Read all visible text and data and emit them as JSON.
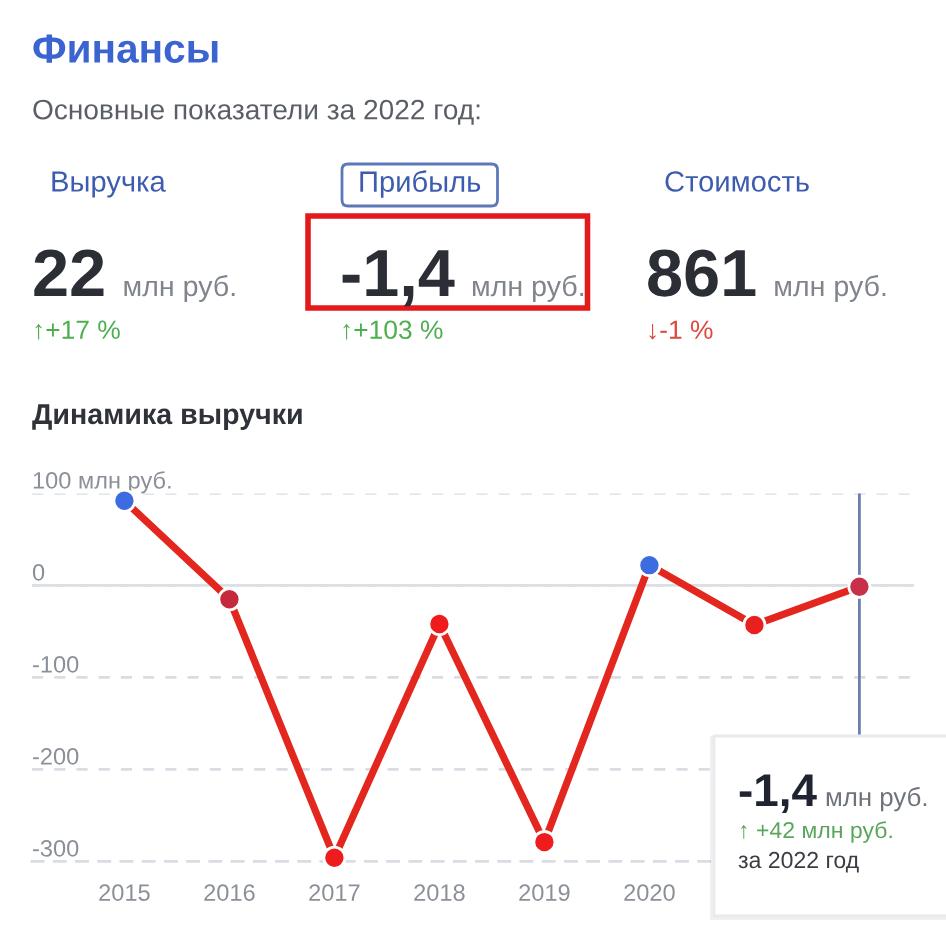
{
  "chart_data": [
    {
      "type": "other",
      "title": "Финансы",
      "subtitle": "Основные показатели за 2022 год:",
      "annotations": [
        "Выручка",
        "22",
        "млн руб.",
        "↑+17 %",
        "Прибыль",
        "-1,4",
        "млн руб.",
        "↑+103 %",
        "Стоимость",
        "861",
        "млн руб.",
        "↓-1 %"
      ]
    },
    {
      "type": "line",
      "title": "Динамика выручки",
      "x": [
        2015,
        2016,
        2017,
        2018,
        2019,
        2020,
        2021,
        2022
      ],
      "series": [
        {
          "color": "#e3261e",
          "colors": [
            "#3d6be0",
            "#c42a3c",
            "#ee1c1c",
            "#ee1c1c",
            "#ee1c1c",
            "#3d6be0",
            "#e8201f",
            "#c8304a"
          ],
          "values": [
            92,
            -15,
            -296,
            -42,
            -279,
            22,
            -43,
            -1.4
          ]
        }
      ],
      "xlim": [
        2014.12,
        2022.52
      ],
      "xticks": [
        2015,
        2016,
        2017,
        2018,
        2019,
        2020
      ],
      "ylim": [
        -300,
        100
      ],
      "yticks": [
        {
          "value": 100,
          "label": "100 млн руб."
        },
        0,
        -100,
        -200,
        -300
      ],
      "grid": "y",
      "marker": "circle",
      "line_style": "solid",
      "ref_lines": [
        {
          "axis": "y",
          "value": 0,
          "color": "#dcdfe4",
          "line_style": "solid"
        },
        {
          "axis": "x",
          "value": 2022,
          "color": "#6b7fae",
          "line_style": "solid"
        }
      ],
      "annotations": [
        "-1,4",
        "млн руб.",
        "↑ +42 млн руб.",
        "за 2022 год"
      ]
    }
  ]
}
